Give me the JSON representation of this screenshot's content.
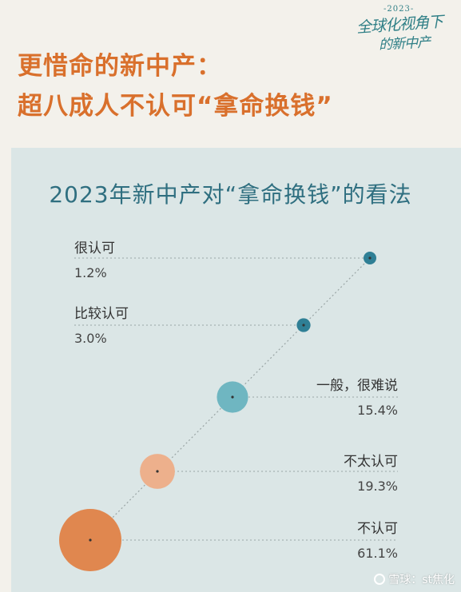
{
  "logo": {
    "year": "-2023-",
    "line1": "全球化视角下",
    "line2": "的新中产"
  },
  "headline": {
    "line1": "更惜命的新中产：",
    "line2": "超八成人不认可“拿命换钱”"
  },
  "watermark": "雪球：st焦化",
  "colors": {
    "accent": "#d9702c",
    "card_bg": "#dbe6e6",
    "title": "#2f6f80"
  },
  "chart_data": {
    "type": "scatter",
    "title": "2023年新中产对“拿命换钱”的看法",
    "categories": [
      "很认可",
      "比较认可",
      "一般，很难说",
      "不太认可",
      "不认可"
    ],
    "values": [
      1.2,
      3.0,
      15.4,
      19.3,
      61.1
    ],
    "value_labels": [
      "1.2%",
      "3.0%",
      "15.4%",
      "19.3%",
      "61.1%"
    ],
    "colors": [
      "#2f7f95",
      "#2f7f95",
      "#6fb6c1",
      "#edb08c",
      "#e0874f"
    ],
    "encoding": "bubble area proportional to percentage",
    "legend": "none",
    "grid": false
  }
}
